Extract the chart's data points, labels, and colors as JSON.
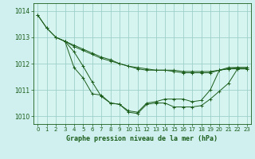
{
  "title": "Graphe pression niveau de la mer (hPa)",
  "background_color": "#cff0ee",
  "plot_bg_color": "#d6f5f0",
  "grid_color": "#9ecfca",
  "line_color": "#1a5c1a",
  "xlabel_bg": "#2d6e2d",
  "xlabel_color": "#ffffff",
  "xlim": [
    -0.5,
    23.5
  ],
  "ylim": [
    1009.7,
    1014.3
  ],
  "xticks": [
    0,
    1,
    2,
    3,
    4,
    5,
    6,
    7,
    8,
    9,
    10,
    11,
    12,
    13,
    14,
    15,
    16,
    17,
    18,
    19,
    20,
    21,
    22,
    23
  ],
  "yticks": [
    1010,
    1011,
    1012,
    1013,
    1014
  ],
  "series": [
    {
      "x": [
        0,
        1,
        2,
        3,
        4,
        5,
        6,
        7,
        8,
        9,
        10,
        11,
        12,
        13,
        14,
        15,
        16,
        17,
        18,
        19,
        20,
        21,
        22,
        23
      ],
      "y": [
        1013.85,
        1013.35,
        1013.0,
        1012.85,
        1012.65,
        1012.5,
        1012.35,
        1012.2,
        1012.1,
        1012.0,
        1011.9,
        1011.85,
        1011.8,
        1011.75,
        1011.75,
        1011.75,
        1011.7,
        1011.7,
        1011.7,
        1011.7,
        1011.75,
        1011.8,
        1011.85,
        1011.85
      ]
    },
    {
      "x": [
        2,
        3,
        4,
        5,
        6,
        7,
        8,
        9,
        10,
        11,
        12,
        13,
        14,
        15,
        16,
        17,
        18,
        19,
        20,
        21,
        22,
        23
      ],
      "y": [
        1013.0,
        1012.85,
        1012.7,
        1012.55,
        1012.4,
        1012.25,
        1012.15,
        1012.0,
        1011.9,
        1011.8,
        1011.75,
        1011.75,
        1011.75,
        1011.7,
        1011.65,
        1011.65,
        1011.65,
        1011.65,
        1011.75,
        1011.85,
        1011.85,
        1011.85
      ]
    },
    {
      "x": [
        0,
        1,
        2,
        3,
        4,
        5,
        6,
        7,
        8,
        9,
        10,
        11,
        12,
        13,
        14,
        15,
        16,
        17,
        18,
        19,
        20,
        21,
        22,
        23
      ],
      "y": [
        1013.85,
        1013.35,
        1013.0,
        1012.85,
        1011.85,
        1011.45,
        1010.85,
        1010.8,
        1010.5,
        1010.45,
        1010.2,
        1010.15,
        1010.5,
        1010.55,
        1010.65,
        1010.65,
        1010.65,
        1010.55,
        1010.6,
        1011.0,
        1011.75,
        1011.8,
        1011.8,
        1011.8
      ]
    },
    {
      "x": [
        3,
        4,
        5,
        6,
        7,
        8,
        9,
        10,
        11,
        12,
        13,
        14,
        15,
        16,
        17,
        18,
        19,
        20,
        21,
        22,
        23
      ],
      "y": [
        1012.85,
        1012.45,
        1011.9,
        1011.3,
        1010.75,
        1010.5,
        1010.45,
        1010.15,
        1010.1,
        1010.45,
        1010.5,
        1010.5,
        1010.35,
        1010.35,
        1010.35,
        1010.4,
        1010.65,
        1010.95,
        1011.25,
        1011.8,
        1011.8
      ]
    }
  ]
}
